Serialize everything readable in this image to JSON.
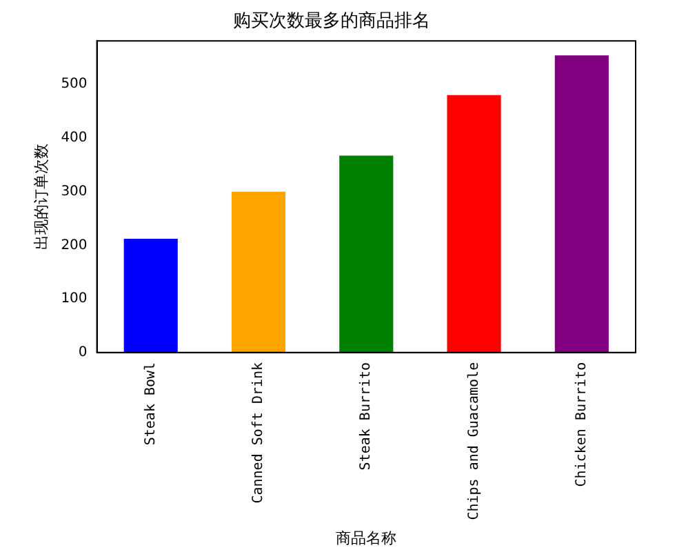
{
  "chart_data": {
    "type": "bar",
    "title": "购买次数最多的商品排名",
    "xlabel": "商品名称",
    "ylabel": "出现的订单次数",
    "categories": [
      "Steak Bowl",
      "Canned Soft Drink",
      "Steak Burrito",
      "Chips and Guacamole",
      "Chicken Burrito"
    ],
    "values": [
      212,
      300,
      367,
      480,
      554
    ],
    "colors": [
      "#0000ff",
      "#ffa500",
      "#008000",
      "#ff0000",
      "#800080"
    ],
    "ylim": [
      0,
      581
    ],
    "yticks": [
      0,
      100,
      200,
      300,
      400,
      500
    ],
    "grid": false,
    "legend": false
  }
}
